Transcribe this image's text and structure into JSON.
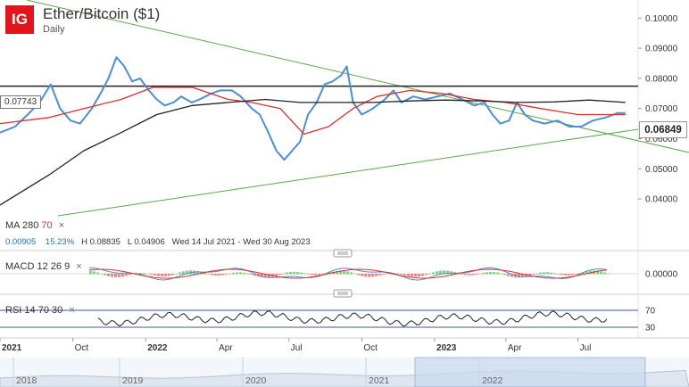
{
  "header": {
    "logo": "IG",
    "title": "Ether/Bitcoin ($1)",
    "subtitle": "Daily"
  },
  "price_marker": "0.07743",
  "last_price": "0.06849",
  "indicators": {
    "ma": {
      "name": "MA",
      "p1": "280",
      "p2": "70",
      "close": "×"
    },
    "stats": {
      "change": "0.00905",
      "change_pct": "15.23%",
      "high": "H 0.08835",
      "low": "L 0.04906",
      "range": "Wed 14 Jul 2021 - Wed 30 Aug 2023"
    },
    "macd": {
      "name": "MACD",
      "p1": "12",
      "p2": "26",
      "p3": "9",
      "close": "×"
    },
    "rsi": {
      "name": "RSI",
      "p1": "14",
      "p2": "70",
      "p3": "30",
      "close": "×"
    }
  },
  "colors": {
    "price": "#4a8fd4",
    "ma_short": "#d8302c",
    "ma_long": "#222222",
    "trendline": "#5aa84a",
    "resistance": "#222222",
    "navigator_fill": "#c9dbef"
  },
  "chart_data": {
    "type": "line",
    "title": "Ether/Bitcoin ($1)",
    "y_ticks": [
      "0.10000",
      "0.09000",
      "0.08000",
      "0.07000",
      "0.06000",
      "0.05000",
      "0.04000"
    ],
    "ylim": [
      0.035,
      0.106
    ],
    "x_ticks": [
      "2021",
      "Oct",
      "2022",
      "Apr",
      "Jul",
      "Oct",
      "2023",
      "Apr",
      "Jul"
    ],
    "xlim": [
      "2021-07-01",
      "2023-09-15"
    ],
    "horizontal_line": 0.07743,
    "series": [
      {
        "name": "Price",
        "x": [
          "2021-07-01",
          "2021-07-20",
          "2021-08-05",
          "2021-08-20",
          "2021-09-03",
          "2021-09-15",
          "2021-09-28",
          "2021-10-10",
          "2021-10-25",
          "2021-11-05",
          "2021-11-15",
          "2021-11-25",
          "2021-12-05",
          "2021-12-15",
          "2021-12-25",
          "2022-01-05",
          "2022-01-15",
          "2022-01-25",
          "2022-02-05",
          "2022-02-15",
          "2022-02-28",
          "2022-03-10",
          "2022-03-25",
          "2022-04-05",
          "2022-04-20",
          "2022-05-01",
          "2022-05-15",
          "2022-05-25",
          "2022-06-05",
          "2022-06-15",
          "2022-06-25",
          "2022-07-05",
          "2022-07-15",
          "2022-07-25",
          "2022-08-05",
          "2022-08-15",
          "2022-08-25",
          "2022-09-05",
          "2022-09-12",
          "2022-09-20",
          "2022-10-01",
          "2022-10-15",
          "2022-10-30",
          "2022-11-10",
          "2022-11-20",
          "2022-12-05",
          "2022-12-20",
          "2023-01-05",
          "2023-01-20",
          "2023-02-05",
          "2023-02-20",
          "2023-03-05",
          "2023-03-15",
          "2023-03-25",
          "2023-04-05",
          "2023-04-15",
          "2023-04-25",
          "2023-05-05",
          "2023-05-20",
          "2023-06-05",
          "2023-06-20",
          "2023-07-05",
          "2023-07-20",
          "2023-08-05",
          "2023-08-20",
          "2023-08-30"
        ],
        "values": [
          0.062,
          0.064,
          0.068,
          0.072,
          0.078,
          0.07,
          0.066,
          0.065,
          0.07,
          0.075,
          0.08,
          0.087,
          0.084,
          0.079,
          0.08,
          0.076,
          0.073,
          0.071,
          0.072,
          0.074,
          0.072,
          0.073,
          0.075,
          0.076,
          0.076,
          0.074,
          0.07,
          0.068,
          0.062,
          0.056,
          0.053,
          0.056,
          0.059,
          0.068,
          0.072,
          0.078,
          0.079,
          0.081,
          0.084,
          0.072,
          0.068,
          0.07,
          0.073,
          0.076,
          0.072,
          0.074,
          0.073,
          0.074,
          0.075,
          0.073,
          0.071,
          0.072,
          0.068,
          0.065,
          0.066,
          0.072,
          0.068,
          0.066,
          0.065,
          0.066,
          0.064,
          0.064,
          0.066,
          0.067,
          0.0685,
          0.0685
        ]
      },
      {
        "name": "MA 70",
        "x": [
          "2021-07-01",
          "2021-09-01",
          "2021-10-15",
          "2021-12-01",
          "2022-01-10",
          "2022-03-01",
          "2022-04-15",
          "2022-05-15",
          "2022-06-20",
          "2022-07-20",
          "2022-08-20",
          "2022-09-20",
          "2022-10-20",
          "2022-12-01",
          "2023-01-10",
          "2023-02-20",
          "2023-04-01",
          "2023-05-15",
          "2023-07-01",
          "2023-08-30"
        ],
        "values": [
          0.065,
          0.067,
          0.07,
          0.073,
          0.077,
          0.077,
          0.073,
          0.072,
          0.07,
          0.0615,
          0.064,
          0.07,
          0.074,
          0.076,
          0.075,
          0.073,
          0.072,
          0.07,
          0.068,
          0.068
        ]
      },
      {
        "name": "MA 280",
        "x": [
          "2021-07-01",
          "2021-09-01",
          "2021-10-15",
          "2021-12-01",
          "2022-01-15",
          "2022-03-01",
          "2022-04-15",
          "2022-06-01",
          "2022-07-15",
          "2022-09-01",
          "2022-10-15",
          "2022-12-01",
          "2023-01-15",
          "2023-03-01",
          "2023-04-15",
          "2023-06-01",
          "2023-07-15",
          "2023-08-30"
        ],
        "values": [
          0.038,
          0.048,
          0.056,
          0.062,
          0.068,
          0.071,
          0.072,
          0.073,
          0.072,
          0.072,
          0.072,
          0.0725,
          0.0728,
          0.0725,
          0.072,
          0.0722,
          0.0728,
          0.072
        ]
      }
    ]
  },
  "macd_axis": "0.00000",
  "rsi_axis": [
    "70",
    "30"
  ],
  "navigator_years": [
    "2018",
    "2019",
    "2020",
    "2021",
    "2022"
  ]
}
